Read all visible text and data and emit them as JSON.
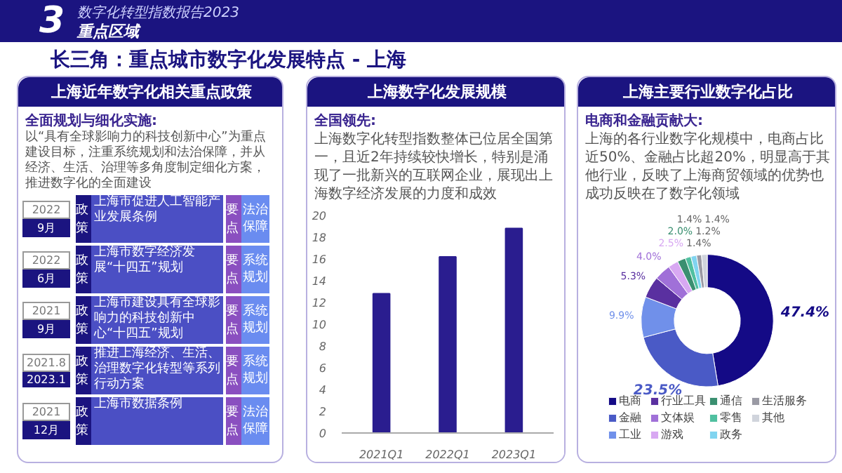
{
  "chart_data": [
    {
      "type": "other",
      "title": "长三角：重点城市数字化发展特点 - 上海",
      "annotations": [
        "3",
        "数字化转型指数报告2023",
        "重点区域"
      ]
    },
    {
      "type": "other",
      "title": "上海近年数字化相关重点政策",
      "subtitle": "全面规划与细化实施:",
      "annotations": [
        "以“具有全球影响力的科技创新中心”为重点建设目标，注重系统规划和法治保障，并从经济、生活、治理等多角度制定细化方案，推进数字化的全面建设",
        "政策",
        "要点",
        "2022",
        "9月",
        "上海市促进人工智能产业发展条例",
        "法治保障",
        "2022",
        "6月",
        "上海市数字经济发展“十四五”规划",
        "系统规划",
        "2021",
        "9月",
        "上海市建设具有全球影响力的科技创新中心“十四五”规划",
        "系统规划",
        "2021.8",
        "2023.1",
        "推进上海经济、生活、治理数字化转型等系列行动方案",
        "系统规划",
        "2021",
        "12月",
        "上海市数据条例",
        "法治保障"
      ]
    },
    {
      "type": "bar",
      "title": "上海数字化发展规模",
      "subtitle": "全国领先:",
      "annotations": [
        "上海数字化转型指数整体已位居全国第一，且近2年持续较快增长，特别是涌现了一批新兴的互联网企业，展现出上海数字经济发展的力度和成效"
      ],
      "categories": [
        "2021Q1",
        "2022Q1",
        "2023Q1"
      ],
      "values": [
        12.8,
        16.2,
        18.8
      ],
      "color": "#2a1d8f",
      "ylim": [
        0,
        20
      ],
      "yticks": [
        0,
        2,
        4,
        6,
        8,
        10,
        12,
        14,
        16,
        18,
        20
      ],
      "grid": false
    },
    {
      "type": "donut",
      "title": "上海主要行业数字化占比",
      "subtitle": "电商和金融贡献大:",
      "annotations": [
        "上海的各行业数字化规模中，电商占比近50%、金融占比超20%，明显高于其他行业，反映了上海商贸领域的优势也成功反映在了数字化领域"
      ],
      "categories": [
        "电商",
        "金融",
        "工业",
        "行业工具",
        "文体娱",
        "游戏",
        "通信",
        "零售",
        "政务",
        "生活服务",
        "其他"
      ],
      "values": [
        47.4,
        23.5,
        9.9,
        5.3,
        4.0,
        2.5,
        2.0,
        1.4,
        1.4,
        1.2,
        1.4
      ],
      "colors": [
        "#140a86",
        "#4a5ac6",
        "#7090ea",
        "#5a30a0",
        "#a070d8",
        "#d8a8f2",
        "#3a8f70",
        "#50c0a0",
        "#80d4f0",
        "#9a9aa4",
        "#d0d4dc"
      ],
      "value_labels": [
        "47.4%",
        "23.5%",
        "9.9%",
        "5.3%",
        "4.0%",
        "2.5%",
        "2.0%",
        "1.4%",
        "1.4%",
        "1.2%",
        "1.4%"
      ],
      "legend": "bottom"
    }
  ]
}
